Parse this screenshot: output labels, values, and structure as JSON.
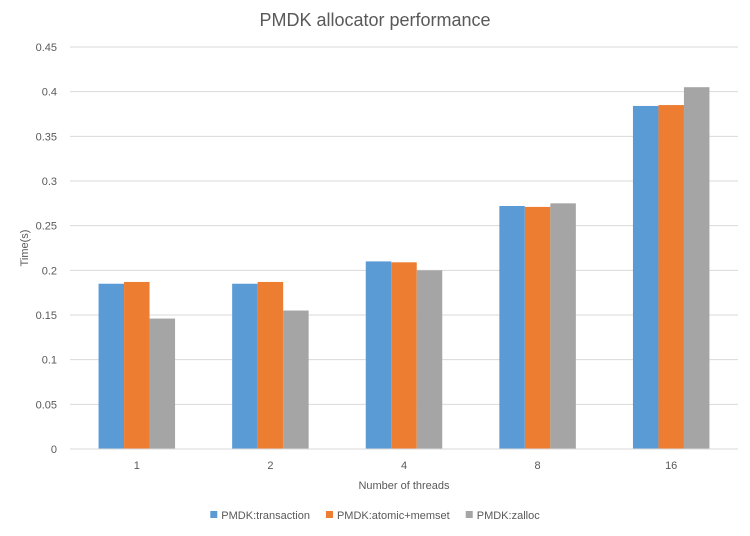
{
  "chart_data": {
    "type": "bar",
    "title": "PMDK allocator performance",
    "xlabel": "Number of threads",
    "ylabel": "Time(s)",
    "categories": [
      "1",
      "2",
      "4",
      "8",
      "16"
    ],
    "ylim": [
      0,
      0.45
    ],
    "yticks": [
      "0",
      "0.05",
      "0.1",
      "0.15",
      "0.2",
      "0.25",
      "0.3",
      "0.35",
      "0.4",
      "0.45"
    ],
    "grid": true,
    "legend_position": "bottom",
    "series": [
      {
        "name": "PMDK:transaction",
        "color": "#5B9BD5",
        "values": [
          0.185,
          0.185,
          0.21,
          0.272,
          0.384
        ]
      },
      {
        "name": "PMDK:atomic+memset",
        "color": "#ED7D31",
        "values": [
          0.187,
          0.187,
          0.209,
          0.271,
          0.385
        ]
      },
      {
        "name": "PMDK:zalloc",
        "color": "#A5A5A5",
        "values": [
          0.146,
          0.155,
          0.2,
          0.275,
          0.405
        ]
      }
    ]
  }
}
